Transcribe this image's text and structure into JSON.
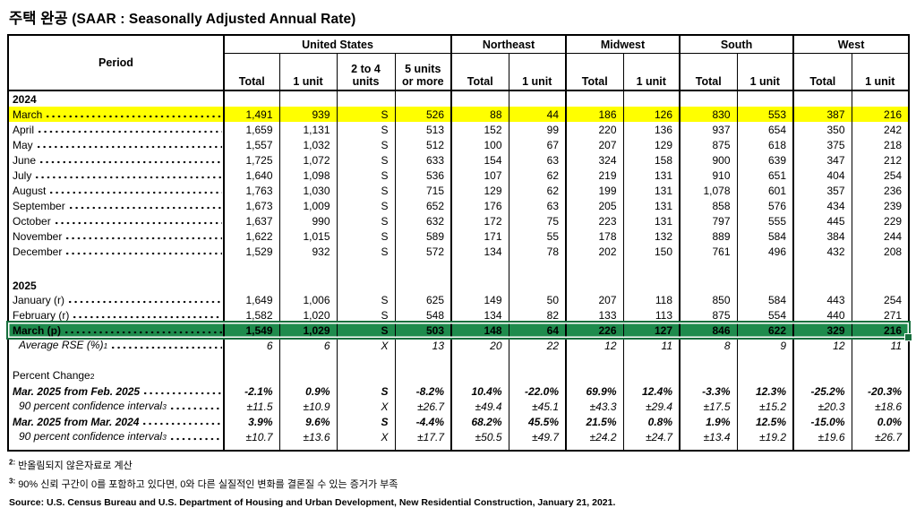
{
  "title": {
    "ko": "주택 완공",
    "en": "(SAAR : Seasonally Adjusted Annual Rate)"
  },
  "table": {
    "period_header": "Period",
    "groups": [
      {
        "label": "United States",
        "cols": [
          "Total",
          "1 unit",
          "2 to 4\nunits",
          "5 units\nor more"
        ]
      },
      {
        "label": "Northeast",
        "cols": [
          "Total",
          "1 unit"
        ]
      },
      {
        "label": "Midwest",
        "cols": [
          "Total",
          "1 unit"
        ]
      },
      {
        "label": "South",
        "cols": [
          "Total",
          "1 unit"
        ]
      },
      {
        "label": "West",
        "cols": [
          "Total",
          "1 unit"
        ]
      }
    ],
    "rows": [
      {
        "kind": "year",
        "label": "2024"
      },
      {
        "kind": "data",
        "label": "March",
        "leader": true,
        "highlight": "yellow",
        "values": [
          "1,491",
          "939",
          "S",
          "526",
          "88",
          "44",
          "186",
          "126",
          "830",
          "553",
          "387",
          "216"
        ]
      },
      {
        "kind": "data",
        "label": "April",
        "leader": true,
        "values": [
          "1,659",
          "1,131",
          "S",
          "513",
          "152",
          "99",
          "220",
          "136",
          "937",
          "654",
          "350",
          "242"
        ]
      },
      {
        "kind": "data",
        "label": "May",
        "leader": true,
        "values": [
          "1,557",
          "1,032",
          "S",
          "512",
          "100",
          "67",
          "207",
          "129",
          "875",
          "618",
          "375",
          "218"
        ]
      },
      {
        "kind": "data",
        "label": "June",
        "leader": true,
        "values": [
          "1,725",
          "1,072",
          "S",
          "633",
          "154",
          "63",
          "324",
          "158",
          "900",
          "639",
          "347",
          "212"
        ]
      },
      {
        "kind": "data",
        "label": "July",
        "leader": true,
        "values": [
          "1,640",
          "1,098",
          "S",
          "536",
          "107",
          "62",
          "219",
          "131",
          "910",
          "651",
          "404",
          "254"
        ]
      },
      {
        "kind": "data",
        "label": "August",
        "leader": true,
        "values": [
          "1,763",
          "1,030",
          "S",
          "715",
          "129",
          "62",
          "199",
          "131",
          "1,078",
          "601",
          "357",
          "236"
        ]
      },
      {
        "kind": "data",
        "label": "September",
        "leader": true,
        "values": [
          "1,673",
          "1,009",
          "S",
          "652",
          "176",
          "63",
          "205",
          "131",
          "858",
          "576",
          "434",
          "239"
        ]
      },
      {
        "kind": "data",
        "label": "October",
        "leader": true,
        "values": [
          "1,637",
          "990",
          "S",
          "632",
          "172",
          "75",
          "223",
          "131",
          "797",
          "555",
          "445",
          "229"
        ]
      },
      {
        "kind": "data",
        "label": "November",
        "leader": true,
        "values": [
          "1,622",
          "1,015",
          "S",
          "589",
          "171",
          "55",
          "178",
          "132",
          "889",
          "584",
          "384",
          "244"
        ]
      },
      {
        "kind": "data",
        "label": "December",
        "leader": true,
        "values": [
          "1,529",
          "932",
          "S",
          "572",
          "134",
          "78",
          "202",
          "150",
          "761",
          "496",
          "432",
          "208"
        ]
      },
      {
        "kind": "spacer",
        "cls": "spacer"
      },
      {
        "kind": "year",
        "label": "2025"
      },
      {
        "kind": "data",
        "label": "January (r)",
        "leader": true,
        "values": [
          "1,649",
          "1,006",
          "S",
          "625",
          "149",
          "50",
          "207",
          "118",
          "850",
          "584",
          "443",
          "254"
        ]
      },
      {
        "kind": "data",
        "label": "February (r)",
        "leader": true,
        "values": [
          "1,582",
          "1,020",
          "S",
          "548",
          "134",
          "82",
          "133",
          "113",
          "875",
          "554",
          "440",
          "271"
        ]
      },
      {
        "kind": "data",
        "label": "March (p)",
        "leader": true,
        "highlight": "green",
        "selected": true,
        "values": [
          "1,549",
          "1,029",
          "S",
          "503",
          "148",
          "64",
          "226",
          "127",
          "846",
          "622",
          "329",
          "216"
        ]
      },
      {
        "kind": "data",
        "label": "Average RSE (%)",
        "sup": "1",
        "leader": true,
        "italic": true,
        "indent": true,
        "values": [
          "6",
          "6",
          "X",
          "13",
          "20",
          "22",
          "12",
          "11",
          "8",
          "9",
          "12",
          "11"
        ]
      },
      {
        "kind": "spacer",
        "cls": "spacer2"
      },
      {
        "kind": "label",
        "label": "Percent Change",
        "sup": "2"
      },
      {
        "kind": "data",
        "label": "Mar. 2025 from Feb. 2025",
        "leader": true,
        "bold": true,
        "values": [
          "-2.1%",
          "0.9%",
          "S",
          "-8.2%",
          "10.4%",
          "-22.0%",
          "69.9%",
          "12.4%",
          "-3.3%",
          "12.3%",
          "-25.2%",
          "-20.3%"
        ]
      },
      {
        "kind": "data",
        "label": "90 percent confidence interval",
        "sup": "3",
        "leader": true,
        "italic": true,
        "indent": true,
        "values": [
          "±11.5",
          "±10.9",
          "X",
          "±26.7",
          "±49.4",
          "±45.1",
          "±43.3",
          "±29.4",
          "±17.5",
          "±15.2",
          "±20.3",
          "±18.6"
        ]
      },
      {
        "kind": "data",
        "label": "Mar. 2025 from Mar. 2024",
        "leader": true,
        "bold": true,
        "values": [
          "3.9%",
          "9.6%",
          "S",
          "-4.4%",
          "68.2%",
          "45.5%",
          "21.5%",
          "0.8%",
          "1.9%",
          "12.5%",
          "-15.0%",
          "0.0%"
        ]
      },
      {
        "kind": "data",
        "label": "90 percent confidence interval",
        "sup": "3",
        "leader": true,
        "italic": true,
        "indent": true,
        "values": [
          "±10.7",
          "±13.6",
          "X",
          "±17.7",
          "±50.5",
          "±49.7",
          "±24.2",
          "±24.7",
          "±13.4",
          "±19.2",
          "±19.6",
          "±26.7"
        ]
      },
      {
        "kind": "spacer",
        "cls": "spacer3"
      }
    ]
  },
  "footnotes": [
    {
      "sup": "2:",
      "text": "반올림되지 않은자료로 계산"
    },
    {
      "sup": "3:",
      "text": "90% 신뢰 구간이 0를 포함하고 있다면, 0와 다른 실질적인 변화를 결론질 수 있는 증거가 부족"
    }
  ],
  "source": "Source: U.S. Census Bureau and U.S. Department of Housing and Urban Development, New Residential Construction, January 21, 2021.",
  "colors": {
    "highlight_yellow": "#FFFF00",
    "highlight_green": "#1F8B4D",
    "selection_border": "#176F3D"
  }
}
